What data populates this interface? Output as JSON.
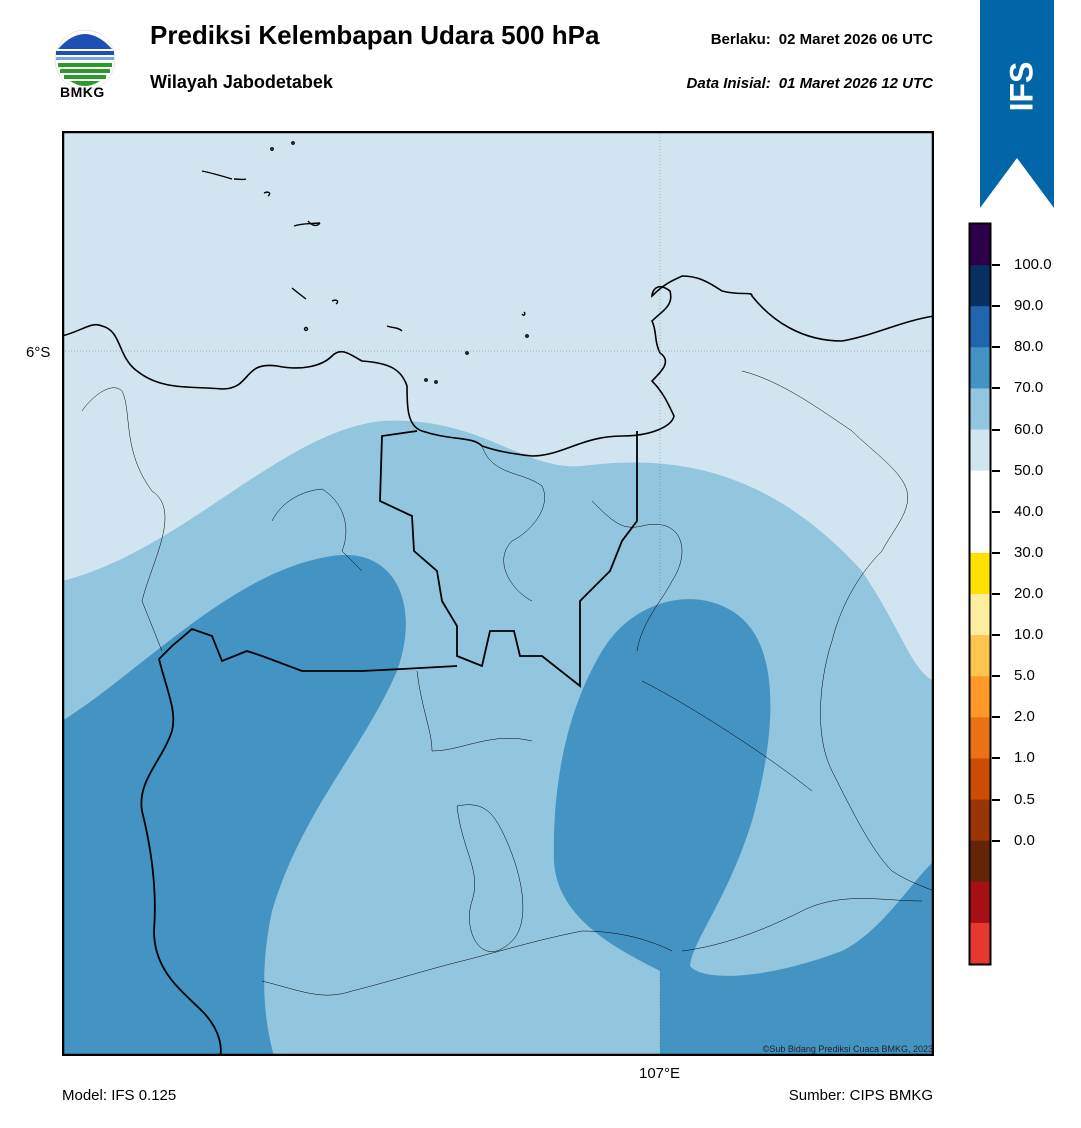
{
  "header": {
    "title": "Prediksi Kelembapan Udara 500 hPa",
    "subtitle": "Wilayah Jabodetabek",
    "valid_label": "Berlaku:",
    "valid_value": "02 Maret 2026 06 UTC",
    "init_label": "Data Inisial:",
    "init_value": "01 Maret 2026 12 UTC"
  },
  "logo": {
    "text": "BMKG"
  },
  "banner": {
    "text": "IFS",
    "color": "#0066a8"
  },
  "map": {
    "lat_label": "6°S",
    "lon_label": "107°E",
    "credit": "©Sub Bidang Prediksi Cuaca BMKG, 2023",
    "colors": {
      "light": "#d1e5f0",
      "mid": "#92c5de",
      "dark": "#4393c3"
    }
  },
  "footer": {
    "model": "Model: IFS 0.125",
    "source": "Sumber: CIPS BMKG"
  },
  "colorbar": {
    "labels": [
      "100.0",
      "90.0",
      "80.0",
      "70.0",
      "60.0",
      "50.0",
      "40.0",
      "30.0",
      "20.0",
      "10.0",
      "5.0",
      "2.0",
      "1.0",
      "0.5",
      "0.0"
    ],
    "colors": [
      "#2d004b",
      "#053061",
      "#2166ac",
      "#4393c3",
      "#92c5de",
      "#d1e5f0",
      "#ffffff",
      "#ffffff",
      "#ffe100",
      "#ffeda0",
      "#fec44f",
      "#fe9929",
      "#ec7014",
      "#cc4c02",
      "#993404",
      "#662506",
      "#a50f15",
      "#e6382e"
    ]
  }
}
